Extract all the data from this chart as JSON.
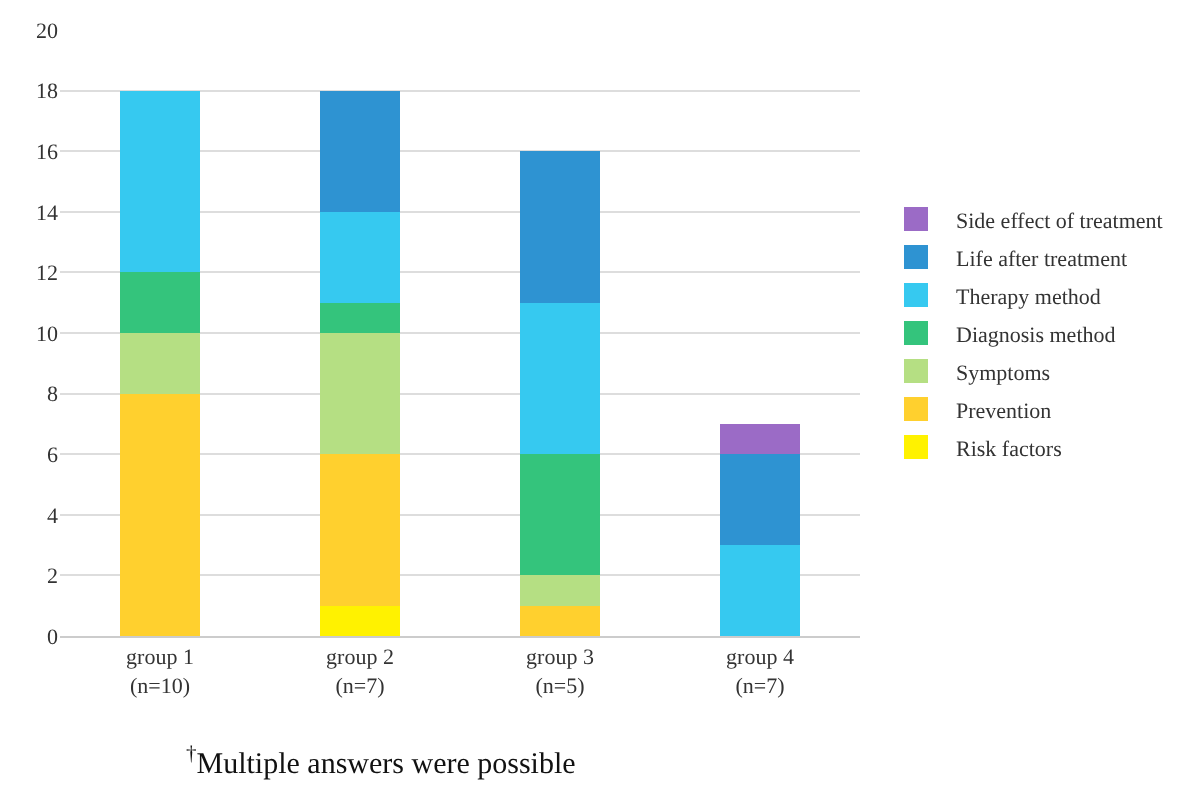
{
  "chart_data": {
    "type": "bar",
    "stacked": true,
    "categories": [
      "group 1\n(n=10)",
      "group 2\n(n=7)",
      "group 3\n(n=5)",
      "group 4\n(n=7)"
    ],
    "series": [
      {
        "name": "Risk factors",
        "color": "#fff200",
        "values": [
          0,
          1,
          0,
          0
        ]
      },
      {
        "name": "Prevention",
        "color": "#ffd02e",
        "values": [
          8,
          5,
          1,
          0
        ]
      },
      {
        "name": "Symptoms",
        "color": "#b5df83",
        "values": [
          2,
          4,
          1,
          0
        ]
      },
      {
        "name": "Diagnosis method",
        "color": "#34c47c",
        "values": [
          2,
          1,
          4,
          0
        ]
      },
      {
        "name": "Therapy method",
        "color": "#36c9f0",
        "values": [
          6,
          3,
          5,
          3
        ]
      },
      {
        "name": "Life after treatment",
        "color": "#2e93d2",
        "values": [
          0,
          4,
          5,
          3
        ]
      },
      {
        "name": "Side effect of treatment",
        "color": "#9b6bc6",
        "values": [
          0,
          0,
          0,
          1
        ]
      }
    ],
    "ylim": [
      0,
      20
    ],
    "yticks": [
      0,
      2,
      4,
      6,
      8,
      10,
      12,
      14,
      16,
      18,
      20
    ],
    "grid": "y",
    "legend": "right",
    "annotations": [
      "$^{†}$Multiple answers were possible"
    ]
  }
}
